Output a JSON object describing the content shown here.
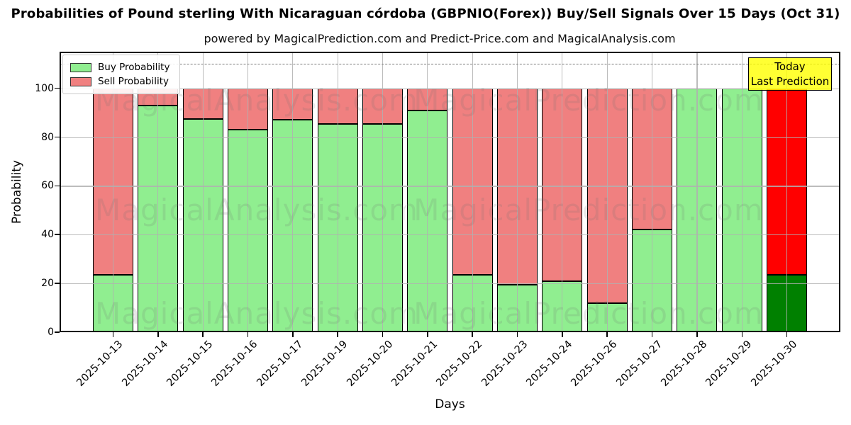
{
  "header": {
    "title": "Probabilities of Pound sterling With Nicaraguan córdoba (GBPNIO(Forex)) Buy/Sell Signals Over 15 Days (Oct 31)",
    "subtitle": "powered by MagicalPrediction.com and Predict-Price.com and MagicalAnalysis.com"
  },
  "annotation": {
    "lines": [
      "Today",
      "Last Prediction"
    ],
    "bg_color": "#FFFF00"
  },
  "watermark": {
    "left_text": "MagicalAnalysis.com",
    "right_text": "MagicalPrediction.com"
  },
  "legend": {
    "position": "upper left"
  },
  "chart_data": {
    "type": "bar",
    "stacked": true,
    "title": "Probabilities of Pound sterling With Nicaraguan córdoba (GBPNIO(Forex)) Buy/Sell Signals Over 15 Days (Oct 31)",
    "categories": [
      "2025-10-13",
      "2025-10-14",
      "2025-10-15",
      "2025-10-16",
      "2025-10-17",
      "2025-10-19",
      "2025-10-20",
      "2025-10-21",
      "2025-10-22",
      "2025-10-23",
      "2025-10-24",
      "2025-10-26",
      "2025-10-27",
      "2025-10-28",
      "2025-10-29",
      "2025-10-30"
    ],
    "series": [
      {
        "name": "Buy Probability",
        "color": "#90EE90",
        "final_bar_color": "#008000",
        "values": [
          23.5,
          93,
          87.5,
          83,
          87,
          85.5,
          85.5,
          91,
          23.5,
          19.5,
          21,
          12,
          42,
          100,
          100,
          23.5
        ]
      },
      {
        "name": "Sell Probability",
        "color": "#F08080",
        "final_bar_color": "#FF0000",
        "values": [
          76.5,
          7,
          12.5,
          17,
          13,
          14.5,
          14.5,
          9,
          76.5,
          80.5,
          79,
          88,
          58,
          0,
          0,
          76.5
        ]
      }
    ],
    "xlabel": "Days",
    "ylabel": "Probability",
    "ylim": [
      0,
      115
    ],
    "yticks": [
      0,
      20,
      40,
      60,
      80,
      100
    ],
    "dashed_line_y": 110,
    "grid": true,
    "grid_color": "#b0b0b0",
    "legend_position": "upper left"
  }
}
